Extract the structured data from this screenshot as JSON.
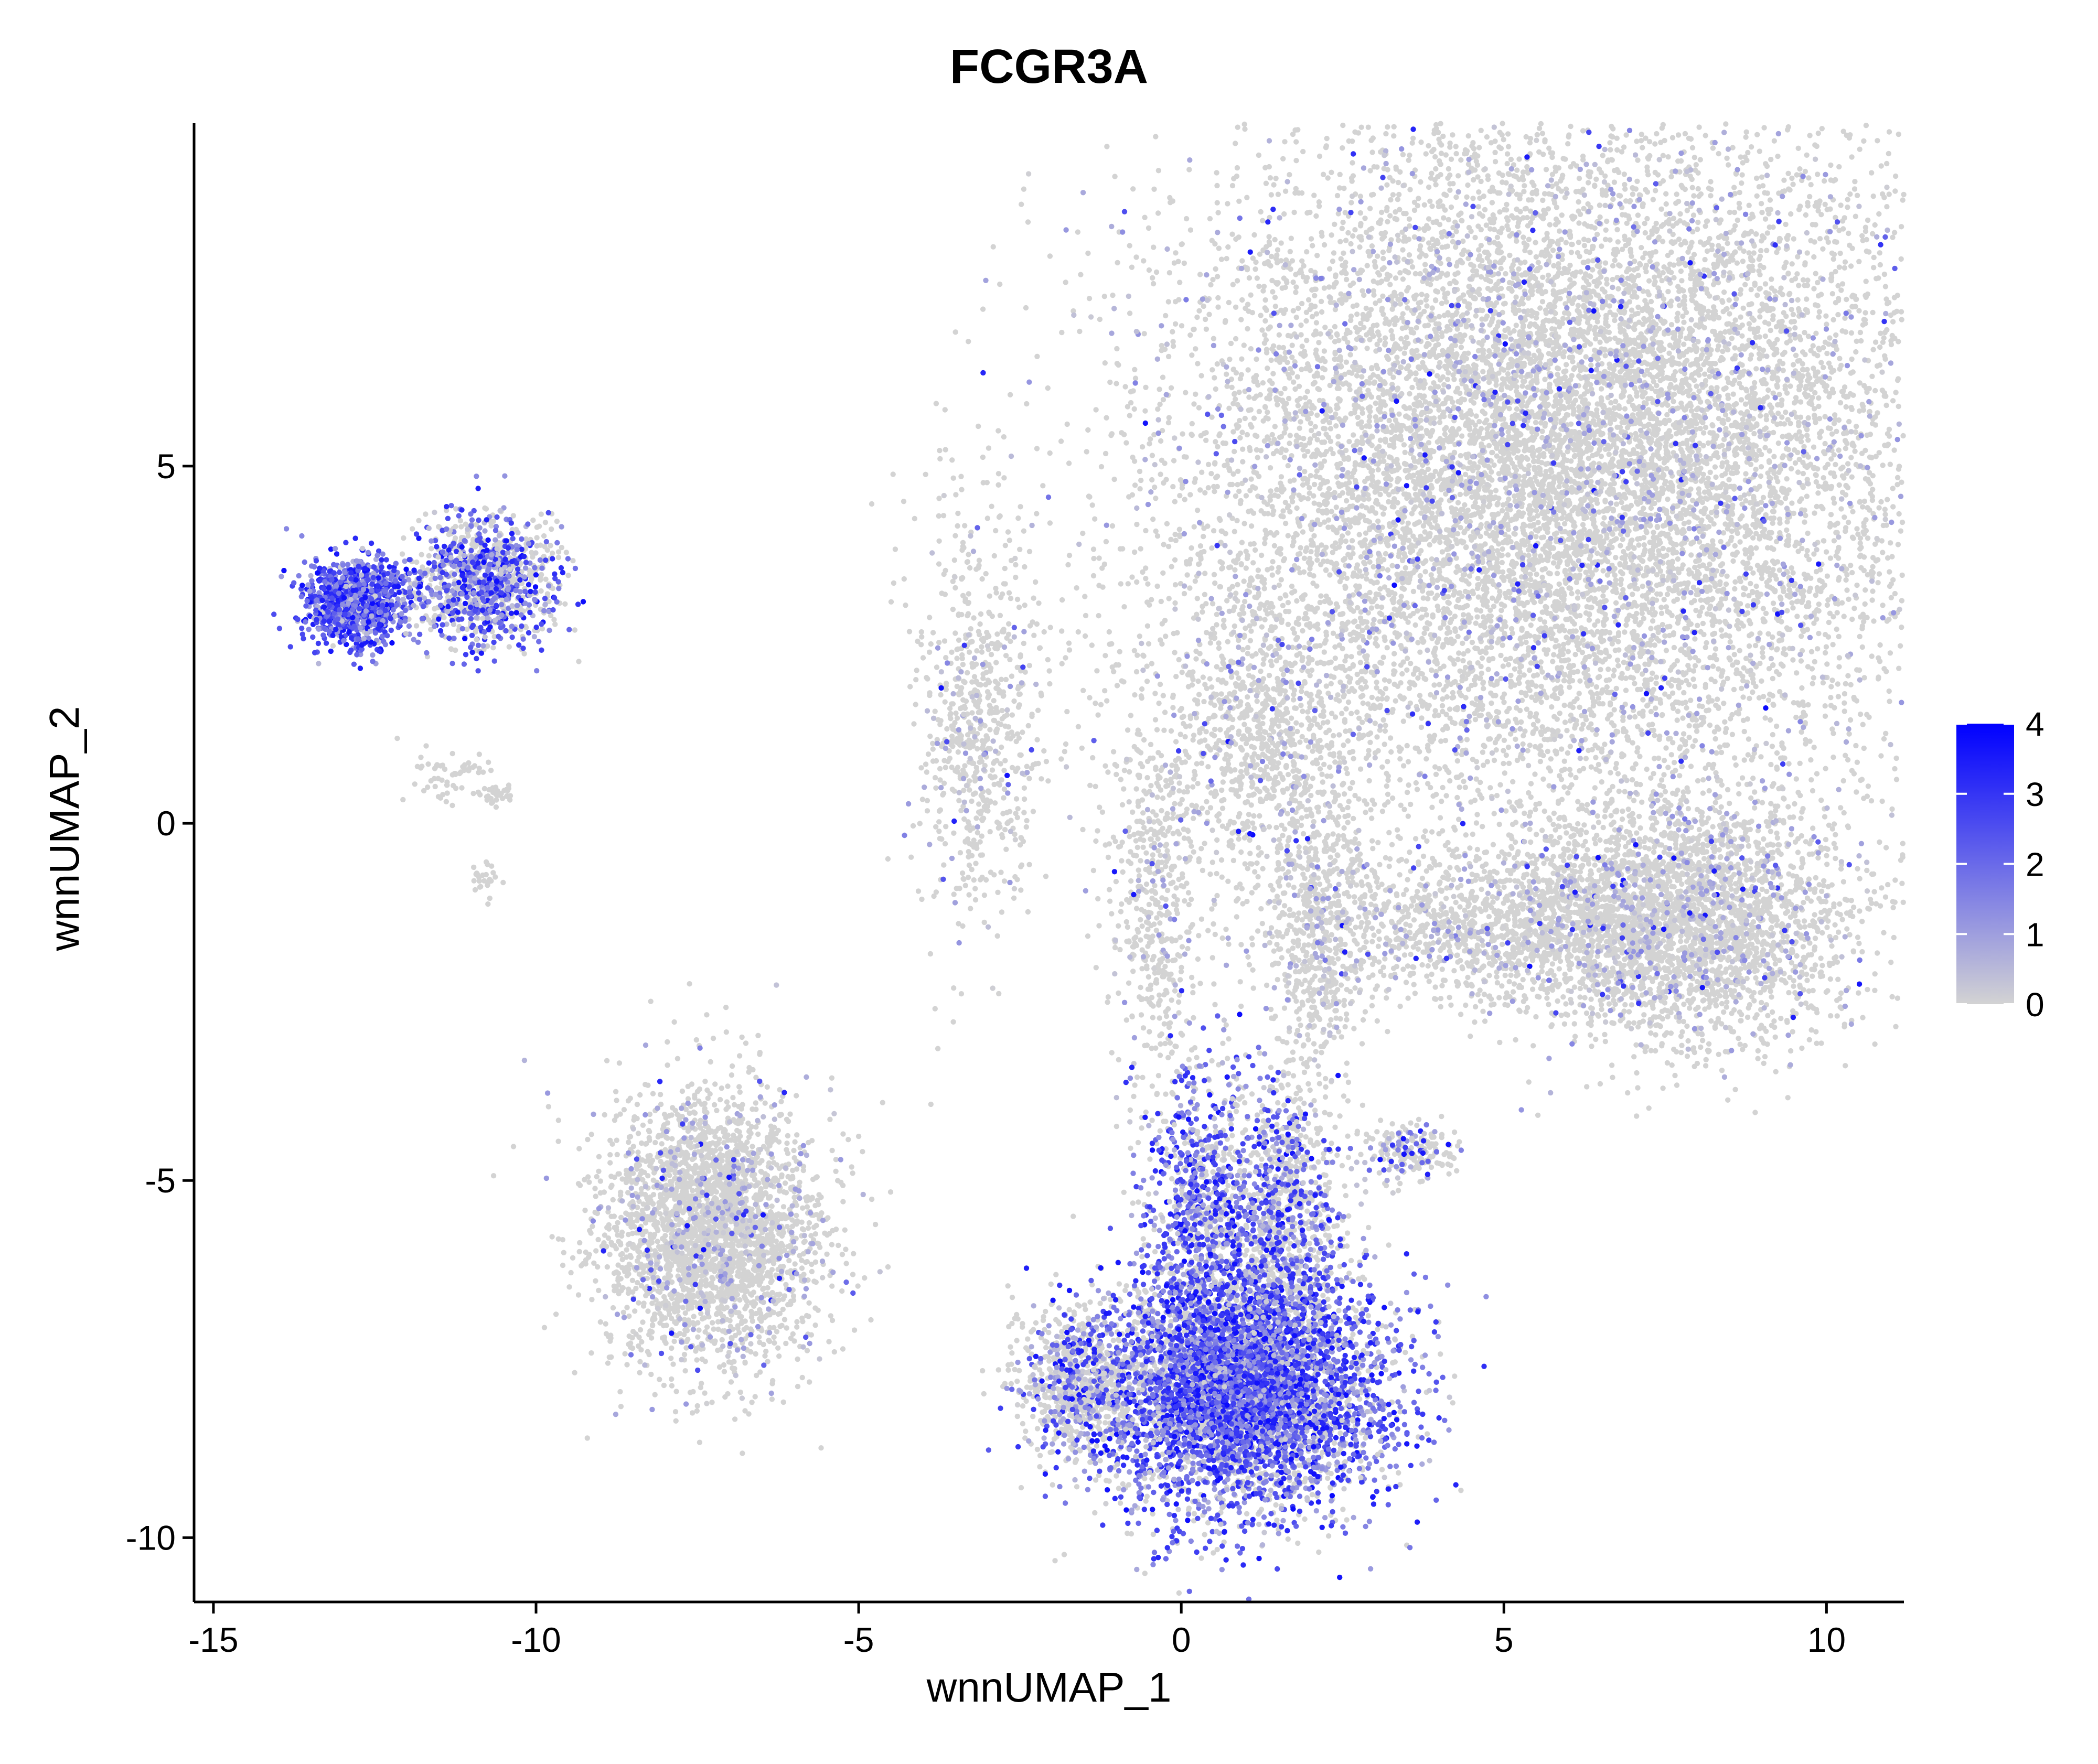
{
  "chart_data": {
    "type": "scatter",
    "title": "FCGR3A",
    "xlabel": "wnnUMAP_1",
    "ylabel": "wnnUMAP_2",
    "xlim": [
      -15.3,
      11.2
    ],
    "ylim": [
      -10.9,
      9.8
    ],
    "x_ticks": [
      -15,
      -10,
      -5,
      0,
      5,
      10
    ],
    "x_tick_labels": [
      "-15",
      "-10",
      "-5",
      "0",
      "5",
      "10"
    ],
    "y_ticks": [
      -10,
      -5,
      0,
      5
    ],
    "y_tick_labels": [
      "-10",
      "-5",
      "0",
      "5"
    ],
    "grid": false,
    "legend_position": "right",
    "colorbar": {
      "min": 0,
      "max": 4,
      "ticks": [
        0,
        1,
        2,
        3,
        4
      ],
      "tick_labels": [
        "0",
        "1",
        "2",
        "3",
        "4"
      ],
      "low_color": "#d3d3d3",
      "high_color": "#0000ff"
    },
    "clusters": [
      {
        "x": 6.1,
        "y": 5.8,
        "sx": 2.9,
        "sy": 2.4,
        "count": 9000,
        "expr": 0.02
      },
      {
        "x": 5.2,
        "y": 3.8,
        "sx": 3.2,
        "sy": 2.2,
        "count": 4500,
        "expr": 0.02
      },
      {
        "x": 1.2,
        "y": 1.1,
        "sx": 0.6,
        "sy": 1.0,
        "count": 700,
        "expr": 0.02
      },
      {
        "x": -3.2,
        "y": 1.3,
        "sx": 0.45,
        "sy": 1.4,
        "count": 700,
        "expr": 0.02
      },
      {
        "x": -0.4,
        "y": -1.0,
        "sx": 0.35,
        "sy": 1.3,
        "count": 500,
        "expr": 0.02
      },
      {
        "x": 2.1,
        "y": -1.5,
        "sx": 0.35,
        "sy": 1.2,
        "count": 600,
        "expr": 0.02
      },
      {
        "x": 7.7,
        "y": -1.4,
        "sx": 1.35,
        "sy": 0.85,
        "count": 3200,
        "expr": 0.02
      },
      {
        "x": 4.6,
        "y": -1.4,
        "sx": 1.5,
        "sy": 0.5,
        "count": 1100,
        "expr": 0.02
      },
      {
        "x": -7.3,
        "y": -5.7,
        "sx": 0.85,
        "sy": 0.95,
        "count": 3000,
        "expr": 0.02
      },
      {
        "x": 3.5,
        "y": -4.6,
        "sx": 0.35,
        "sy": 0.2,
        "count": 200,
        "expr": 0.15
      },
      {
        "x": -10.8,
        "y": 3.4,
        "sx": 0.55,
        "sy": 0.45,
        "count": 1100,
        "expr": 0.45
      },
      {
        "x": -12.8,
        "y": 3.1,
        "sx": 0.4,
        "sy": 0.3,
        "count": 1100,
        "expr": 0.9
      },
      {
        "x": -11.4,
        "y": 0.7,
        "sx": 0.35,
        "sy": 0.2,
        "count": 60,
        "expr": 0.0
      },
      {
        "x": -10.6,
        "y": 0.4,
        "sx": 0.15,
        "sy": 0.08,
        "count": 30,
        "expr": 0.0
      },
      {
        "x": -10.8,
        "y": -0.8,
        "sx": 0.1,
        "sy": 0.15,
        "count": 25,
        "expr": 0.0
      },
      {
        "x": 0.9,
        "y": -7.9,
        "sx": 1.1,
        "sy": 0.85,
        "count": 5500,
        "expr": 0.6
      },
      {
        "x": 0.3,
        "y": -5.2,
        "sx": 0.45,
        "sy": 1.0,
        "count": 900,
        "expr": 0.55
      },
      {
        "x": 1.6,
        "y": -5.4,
        "sx": 0.45,
        "sy": 0.9,
        "count": 900,
        "expr": 0.35
      },
      {
        "x": -1.6,
        "y": -7.8,
        "sx": 0.45,
        "sy": 0.5,
        "count": 700,
        "expr": 0.15
      }
    ]
  }
}
